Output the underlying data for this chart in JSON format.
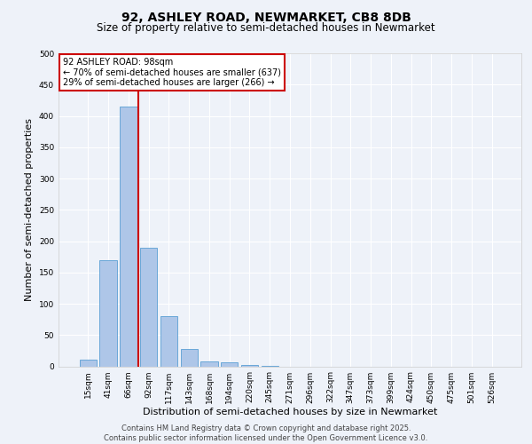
{
  "title_line1": "92, ASHLEY ROAD, NEWMARKET, CB8 8DB",
  "title_line2": "Size of property relative to semi-detached houses in Newmarket",
  "xlabel": "Distribution of semi-detached houses by size in Newmarket",
  "ylabel": "Number of semi-detached properties",
  "categories": [
    "15sqm",
    "41sqm",
    "66sqm",
    "92sqm",
    "117sqm",
    "143sqm",
    "168sqm",
    "194sqm",
    "220sqm",
    "245sqm",
    "271sqm",
    "296sqm",
    "322sqm",
    "347sqm",
    "373sqm",
    "399sqm",
    "424sqm",
    "450sqm",
    "475sqm",
    "501sqm",
    "526sqm"
  ],
  "values": [
    10,
    170,
    415,
    190,
    80,
    28,
    8,
    6,
    2,
    1,
    0,
    0,
    0,
    0,
    0,
    0,
    0,
    0,
    0,
    0,
    0
  ],
  "bar_color": "#aec6e8",
  "bar_edge_color": "#5a9fd4",
  "reference_line_x": 2.5,
  "reference_line_color": "#cc0000",
  "annotation_text": "92 ASHLEY ROAD: 98sqm\n← 70% of semi-detached houses are smaller (637)\n29% of semi-detached houses are larger (266) →",
  "annotation_box_color": "#ffffff",
  "annotation_box_edge_color": "#cc0000",
  "annotation_fontsize": 7.0,
  "background_color": "#eef2f9",
  "plot_background_color": "#eef2f9",
  "ylim": [
    0,
    500
  ],
  "yticks": [
    0,
    50,
    100,
    150,
    200,
    250,
    300,
    350,
    400,
    450,
    500
  ],
  "footer_text": "Contains HM Land Registry data © Crown copyright and database right 2025.\nContains public sector information licensed under the Open Government Licence v3.0.",
  "title_fontsize": 10,
  "subtitle_fontsize": 8.5,
  "axis_label_fontsize": 8,
  "tick_fontsize": 6.5,
  "footer_fontsize": 6
}
